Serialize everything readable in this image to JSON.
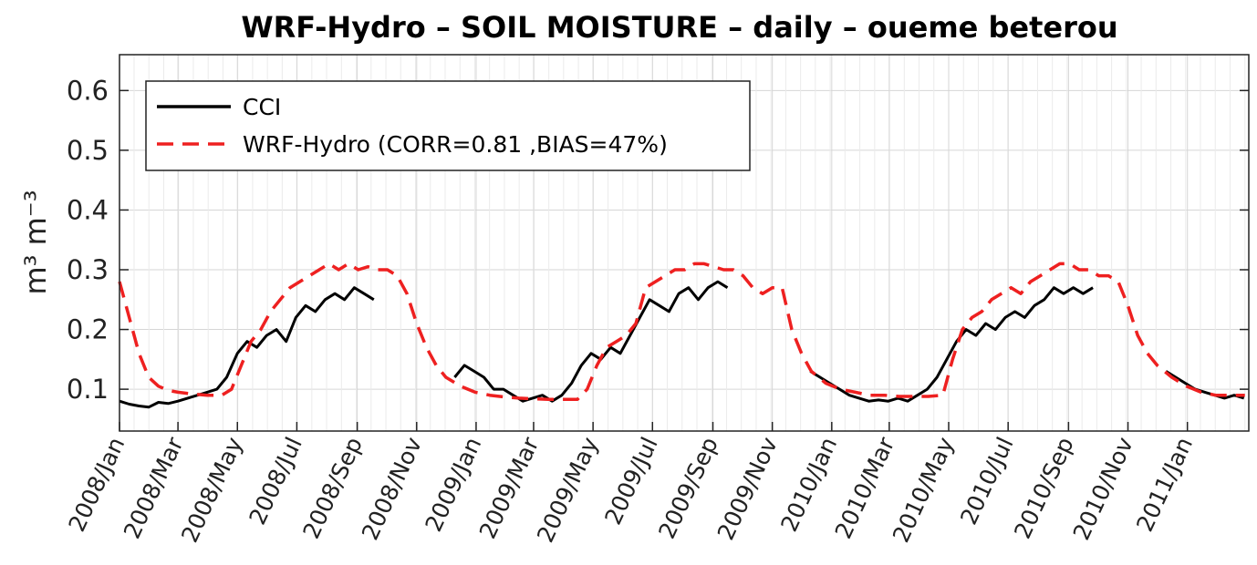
{
  "chart_data": {
    "type": "line",
    "title": "WRF-Hydro  –  SOIL MOISTURE  –  daily  –    oueme beterou",
    "ylabel": "m³ m⁻³",
    "xlabel": "",
    "ylim": [
      0.03,
      0.66
    ],
    "xlim": [
      "2008-01-01",
      "2011-03-05"
    ],
    "yticks": [
      "0.1",
      "0.2",
      "0.3",
      "0.4",
      "0.5",
      "0.6"
    ],
    "xticks": [
      {
        "date": "2008-01-01",
        "label": "2008/Jan"
      },
      {
        "date": "2008-03-01",
        "label": "2008/Mar"
      },
      {
        "date": "2008-05-01",
        "label": "2008/May"
      },
      {
        "date": "2008-07-01",
        "label": "2008/Jul"
      },
      {
        "date": "2008-09-01",
        "label": "2008/Sep"
      },
      {
        "date": "2008-11-01",
        "label": "2008/Nov"
      },
      {
        "date": "2009-01-01",
        "label": "2009/Jan"
      },
      {
        "date": "2009-03-01",
        "label": "2009/Mar"
      },
      {
        "date": "2009-05-01",
        "label": "2009/May"
      },
      {
        "date": "2009-07-01",
        "label": "2009/Jul"
      },
      {
        "date": "2009-09-01",
        "label": "2009/Sep"
      },
      {
        "date": "2009-11-01",
        "label": "2009/Nov"
      },
      {
        "date": "2010-01-01",
        "label": "2010/Jan"
      },
      {
        "date": "2010-03-01",
        "label": "2010/Mar"
      },
      {
        "date": "2010-05-01",
        "label": "2010/May"
      },
      {
        "date": "2010-07-01",
        "label": "2010/Jul"
      },
      {
        "date": "2010-09-01",
        "label": "2010/Sep"
      },
      {
        "date": "2010-11-01",
        "label": "2010/Nov"
      },
      {
        "date": "2011-01-01",
        "label": "2011/Jan"
      }
    ],
    "grid": true,
    "legend_position": "top-left",
    "series": [
      {
        "name": "CCI",
        "color": "#000000",
        "style": "solid",
        "points": [
          [
            "2008-01-01",
            0.08
          ],
          [
            "2008-01-11",
            0.075
          ],
          [
            "2008-01-21",
            0.072
          ],
          [
            "2008-01-31",
            0.07
          ],
          [
            "2008-02-10",
            0.078
          ],
          [
            "2008-02-20",
            0.076
          ],
          [
            "2008-03-01",
            0.08
          ],
          [
            "2008-03-11",
            0.085
          ],
          [
            "2008-03-21",
            0.09
          ],
          [
            "2008-03-31",
            0.095
          ],
          [
            "2008-04-10",
            0.1
          ],
          [
            "2008-04-20",
            0.12
          ],
          [
            "2008-05-01",
            0.16
          ],
          [
            "2008-05-11",
            0.18
          ],
          [
            "2008-05-21",
            0.17
          ],
          [
            "2008-05-31",
            0.19
          ],
          [
            "2008-06-10",
            0.2
          ],
          [
            "2008-06-20",
            0.18
          ],
          [
            "2008-06-30",
            0.22
          ],
          [
            "2008-07-10",
            0.24
          ],
          [
            "2008-07-20",
            0.23
          ],
          [
            "2008-07-30",
            0.25
          ],
          [
            "2008-08-09",
            0.26
          ],
          [
            "2008-08-19",
            0.25
          ],
          [
            "2008-08-29",
            0.27
          ],
          [
            "2008-09-08",
            0.26
          ],
          [
            "2008-09-18",
            0.25
          ],
          [
            "2008-12-10",
            0.12
          ],
          [
            "2008-12-20",
            0.14
          ],
          [
            "2008-12-30",
            0.13
          ],
          [
            "2009-01-09",
            0.12
          ],
          [
            "2009-01-19",
            0.1
          ],
          [
            "2009-01-29",
            0.1
          ],
          [
            "2009-02-08",
            0.09
          ],
          [
            "2009-02-18",
            0.08
          ],
          [
            "2009-02-28",
            0.085
          ],
          [
            "2009-03-10",
            0.09
          ],
          [
            "2009-03-20",
            0.08
          ],
          [
            "2009-03-30",
            0.09
          ],
          [
            "2009-04-09",
            0.11
          ],
          [
            "2009-04-19",
            0.14
          ],
          [
            "2009-04-29",
            0.16
          ],
          [
            "2009-05-09",
            0.15
          ],
          [
            "2009-05-19",
            0.17
          ],
          [
            "2009-05-29",
            0.16
          ],
          [
            "2009-06-08",
            0.19
          ],
          [
            "2009-06-18",
            0.22
          ],
          [
            "2009-06-28",
            0.25
          ],
          [
            "2009-07-08",
            0.24
          ],
          [
            "2009-07-18",
            0.23
          ],
          [
            "2009-07-28",
            0.26
          ],
          [
            "2009-08-07",
            0.27
          ],
          [
            "2009-08-17",
            0.25
          ],
          [
            "2009-08-27",
            0.27
          ],
          [
            "2009-09-06",
            0.28
          ],
          [
            "2009-09-16",
            0.27
          ],
          [
            "2009-12-10",
            0.13
          ],
          [
            "2009-12-20",
            0.12
          ],
          [
            "2009-12-30",
            0.11
          ],
          [
            "2010-01-09",
            0.1
          ],
          [
            "2010-01-19",
            0.09
          ],
          [
            "2010-01-29",
            0.085
          ],
          [
            "2010-02-08",
            0.08
          ],
          [
            "2010-02-18",
            0.082
          ],
          [
            "2010-02-28",
            0.08
          ],
          [
            "2010-03-10",
            0.085
          ],
          [
            "2010-03-20",
            0.08
          ],
          [
            "2010-03-30",
            0.09
          ],
          [
            "2010-04-09",
            0.1
          ],
          [
            "2010-04-19",
            0.12
          ],
          [
            "2010-04-29",
            0.15
          ],
          [
            "2010-05-09",
            0.18
          ],
          [
            "2010-05-19",
            0.2
          ],
          [
            "2010-05-29",
            0.19
          ],
          [
            "2010-06-08",
            0.21
          ],
          [
            "2010-06-18",
            0.2
          ],
          [
            "2010-06-28",
            0.22
          ],
          [
            "2010-07-08",
            0.23
          ],
          [
            "2010-07-18",
            0.22
          ],
          [
            "2010-07-28",
            0.24
          ],
          [
            "2010-08-07",
            0.25
          ],
          [
            "2010-08-17",
            0.27
          ],
          [
            "2010-08-27",
            0.26
          ],
          [
            "2010-09-06",
            0.27
          ],
          [
            "2010-09-16",
            0.26
          ],
          [
            "2010-09-26",
            0.27
          ],
          [
            "2010-12-10",
            0.13
          ],
          [
            "2010-12-20",
            0.12
          ],
          [
            "2010-12-30",
            0.11
          ],
          [
            "2011-01-09",
            0.1
          ],
          [
            "2011-01-19",
            0.095
          ],
          [
            "2011-01-29",
            0.09
          ],
          [
            "2011-02-08",
            0.085
          ],
          [
            "2011-02-18",
            0.09
          ],
          [
            "2011-02-28",
            0.085
          ]
        ]
      },
      {
        "name": "WRF-Hydro (CORR=0.81 ,BIAS=47%)",
        "color": "#ee2020",
        "style": "dashed",
        "points": [
          [
            "2008-01-01",
            0.28
          ],
          [
            "2008-01-11",
            0.22
          ],
          [
            "2008-01-21",
            0.16
          ],
          [
            "2008-01-31",
            0.12
          ],
          [
            "2008-02-10",
            0.105
          ],
          [
            "2008-02-20",
            0.098
          ],
          [
            "2008-03-01",
            0.095
          ],
          [
            "2008-03-16",
            0.092
          ],
          [
            "2008-03-31",
            0.09
          ],
          [
            "2008-04-15",
            0.09
          ],
          [
            "2008-04-25",
            0.1
          ],
          [
            "2008-05-05",
            0.14
          ],
          [
            "2008-05-15",
            0.18
          ],
          [
            "2008-05-25",
            0.2
          ],
          [
            "2008-06-04",
            0.23
          ],
          [
            "2008-06-14",
            0.25
          ],
          [
            "2008-06-24",
            0.27
          ],
          [
            "2008-07-04",
            0.28
          ],
          [
            "2008-07-14",
            0.29
          ],
          [
            "2008-07-24",
            0.3
          ],
          [
            "2008-08-03",
            0.31
          ],
          [
            "2008-08-13",
            0.3
          ],
          [
            "2008-08-23",
            0.31
          ],
          [
            "2008-09-02",
            0.3
          ],
          [
            "2008-09-12",
            0.305
          ],
          [
            "2008-09-22",
            0.3
          ],
          [
            "2008-10-02",
            0.3
          ],
          [
            "2008-10-12",
            0.29
          ],
          [
            "2008-10-22",
            0.26
          ],
          [
            "2008-11-01",
            0.21
          ],
          [
            "2008-11-11",
            0.17
          ],
          [
            "2008-11-21",
            0.14
          ],
          [
            "2008-12-01",
            0.12
          ],
          [
            "2008-12-16",
            0.105
          ],
          [
            "2008-12-31",
            0.095
          ],
          [
            "2009-01-15",
            0.09
          ],
          [
            "2009-01-30",
            0.087
          ],
          [
            "2009-02-14",
            0.085
          ],
          [
            "2009-03-01",
            0.084
          ],
          [
            "2009-03-16",
            0.083
          ],
          [
            "2009-03-31",
            0.083
          ],
          [
            "2009-04-15",
            0.083
          ],
          [
            "2009-04-25",
            0.1
          ],
          [
            "2009-05-05",
            0.14
          ],
          [
            "2009-05-15",
            0.17
          ],
          [
            "2009-05-25",
            0.18
          ],
          [
            "2009-06-04",
            0.19
          ],
          [
            "2009-06-14",
            0.21
          ],
          [
            "2009-06-24",
            0.27
          ],
          [
            "2009-07-04",
            0.28
          ],
          [
            "2009-07-14",
            0.29
          ],
          [
            "2009-07-24",
            0.3
          ],
          [
            "2009-08-03",
            0.3
          ],
          [
            "2009-08-13",
            0.31
          ],
          [
            "2009-08-23",
            0.31
          ],
          [
            "2009-09-02",
            0.305
          ],
          [
            "2009-09-12",
            0.3
          ],
          [
            "2009-09-22",
            0.3
          ],
          [
            "2009-10-02",
            0.29
          ],
          [
            "2009-10-12",
            0.27
          ],
          [
            "2009-10-22",
            0.26
          ],
          [
            "2009-11-01",
            0.27
          ],
          [
            "2009-11-11",
            0.27
          ],
          [
            "2009-11-21",
            0.2
          ],
          [
            "2009-12-01",
            0.16
          ],
          [
            "2009-12-11",
            0.13
          ],
          [
            "2009-12-26",
            0.11
          ],
          [
            "2010-01-10",
            0.1
          ],
          [
            "2010-01-25",
            0.095
          ],
          [
            "2010-02-09",
            0.09
          ],
          [
            "2010-02-24",
            0.09
          ],
          [
            "2010-03-11",
            0.088
          ],
          [
            "2010-03-26",
            0.088
          ],
          [
            "2010-04-10",
            0.088
          ],
          [
            "2010-04-25",
            0.09
          ],
          [
            "2010-05-05",
            0.15
          ],
          [
            "2010-05-15",
            0.2
          ],
          [
            "2010-05-25",
            0.22
          ],
          [
            "2010-06-04",
            0.23
          ],
          [
            "2010-06-14",
            0.25
          ],
          [
            "2010-06-24",
            0.26
          ],
          [
            "2010-07-04",
            0.27
          ],
          [
            "2010-07-14",
            0.26
          ],
          [
            "2010-07-24",
            0.28
          ],
          [
            "2010-08-03",
            0.29
          ],
          [
            "2010-08-13",
            0.3
          ],
          [
            "2010-08-23",
            0.31
          ],
          [
            "2010-09-02",
            0.31
          ],
          [
            "2010-09-12",
            0.3
          ],
          [
            "2010-09-22",
            0.3
          ],
          [
            "2010-10-02",
            0.29
          ],
          [
            "2010-10-12",
            0.29
          ],
          [
            "2010-10-22",
            0.28
          ],
          [
            "2010-11-01",
            0.24
          ],
          [
            "2010-11-11",
            0.19
          ],
          [
            "2010-11-21",
            0.16
          ],
          [
            "2010-12-01",
            0.14
          ],
          [
            "2010-12-16",
            0.12
          ],
          [
            "2010-12-31",
            0.105
          ],
          [
            "2011-01-15",
            0.095
          ],
          [
            "2011-01-30",
            0.09
          ],
          [
            "2011-02-14",
            0.09
          ],
          [
            "2011-03-01",
            0.09
          ]
        ]
      }
    ]
  }
}
